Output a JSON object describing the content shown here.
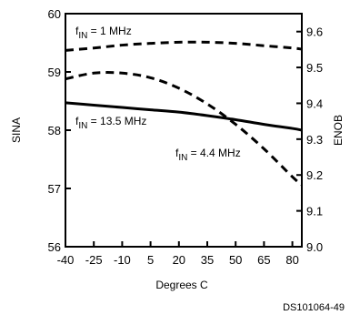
{
  "chart_data": {
    "type": "line",
    "xlabel": "Degrees C",
    "ylabel": "SINA",
    "y2label": "ENOB",
    "xlim": [
      -40,
      85
    ],
    "ylim": [
      56,
      60
    ],
    "y2lim": [
      9.0,
      9.65
    ],
    "x_ticks": [
      "-40",
      "-25",
      "-10",
      "5",
      "20",
      "35",
      "50",
      "65",
      "80"
    ],
    "x_tick_values": [
      -40,
      -25,
      -10,
      5,
      20,
      35,
      50,
      65,
      80
    ],
    "y_ticks": [
      "56",
      "57",
      "58",
      "59",
      "60"
    ],
    "y_tick_values": [
      56,
      57,
      58,
      59,
      60
    ],
    "y2_ticks": [
      "9.0",
      "9.1",
      "9.2",
      "9.3",
      "9.4",
      "9.5",
      "9.6"
    ],
    "y2_tick_values": [
      9.0,
      9.1,
      9.2,
      9.3,
      9.4,
      9.5,
      9.6
    ],
    "grid": false,
    "series": [
      {
        "name": "fIN = 1 MHz",
        "style": "dashed",
        "color": "#000000",
        "x": [
          -40,
          -25,
          -10,
          5,
          20,
          35,
          50,
          65,
          80,
          85
        ],
        "y": [
          59.37,
          59.41,
          59.46,
          59.49,
          59.51,
          59.51,
          59.49,
          59.45,
          59.41,
          59.39
        ]
      },
      {
        "name": "fIN = 13.5 MHz",
        "style": "solid",
        "color": "#000000",
        "x": [
          -40,
          -25,
          -10,
          5,
          20,
          35,
          50,
          65,
          80,
          85
        ],
        "y": [
          58.47,
          58.43,
          58.39,
          58.35,
          58.31,
          58.25,
          58.18,
          58.1,
          58.03,
          58.0
        ]
      },
      {
        "name": "fIN = 4.4 MHz",
        "style": "dashed",
        "color": "#000000",
        "x": [
          -40,
          -25,
          -10,
          5,
          20,
          35,
          50,
          65,
          80,
          85
        ],
        "y": [
          58.88,
          58.98,
          58.98,
          58.9,
          58.72,
          58.45,
          58.1,
          57.68,
          57.2,
          57.06
        ]
      }
    ],
    "annotations": [
      {
        "id": "ann-1mhz",
        "text_main": "f",
        "text_sub": "IN",
        "text_rest": " = 1 MHz"
      },
      {
        "id": "ann-135mhz",
        "text_main": "f",
        "text_sub": "IN",
        "text_rest": " = 13.5 MHz"
      },
      {
        "id": "ann-44mhz",
        "text_main": "f",
        "text_sub": "IN",
        "text_rest": " = 4.4 MHz"
      }
    ]
  },
  "figure_id": "DS101064-49"
}
